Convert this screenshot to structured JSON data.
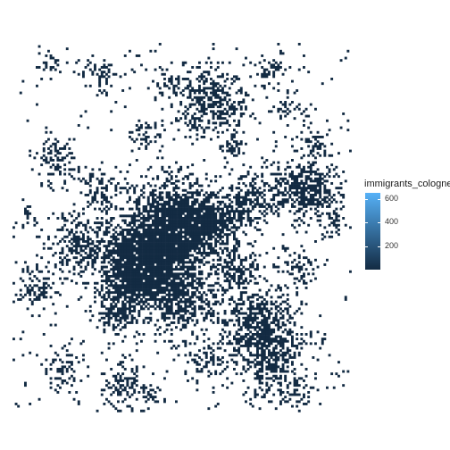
{
  "chart_data": {
    "type": "heatmap",
    "title": "",
    "xlabel": "",
    "ylabel": "",
    "legend": {
      "title": "immigrants_cologne",
      "position": "right",
      "breaks": [
        200,
        400,
        600
      ],
      "labels": [
        "200",
        "400",
        "600"
      ],
      "range": [
        0,
        650
      ],
      "low_color": "#132B43",
      "high_color": "#56B1F7"
    },
    "grid": false,
    "note_on_values": "Map of Cologne raster cells; almost all cells are near the low end of the scale (dark navy)."
  },
  "colors": {
    "background": "#ffffff",
    "low": "#132B43",
    "high": "#56B1F7"
  }
}
